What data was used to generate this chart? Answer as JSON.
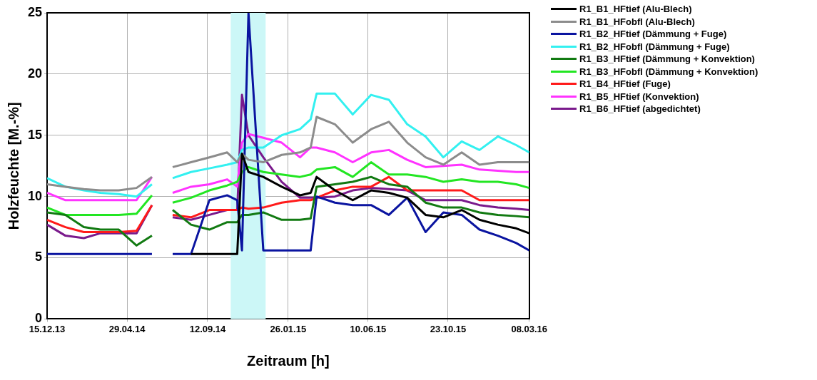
{
  "chart_data": {
    "type": "line",
    "xlabel": "Zeitraum [h]",
    "ylabel": "Holzfeuchte [M.-%]",
    "x": [
      "2013-12-15",
      "2014-01-15",
      "2014-02-15",
      "2014-03-15",
      "2014-04-15",
      "2014-05-15",
      "2014-06-10",
      "2014-06-20",
      "2014-07-15",
      "2014-08-15",
      "2014-09-15",
      "2014-10-15",
      "2014-11-01",
      "2014-11-09",
      "2014-11-20",
      "2014-12-15",
      "2015-01-15",
      "2015-02-15",
      "2015-03-05",
      "2015-03-15",
      "2015-04-15",
      "2015-05-15",
      "2015-06-15",
      "2015-07-15",
      "2015-08-15",
      "2015-09-15",
      "2015-10-15",
      "2015-11-15",
      "2015-12-15",
      "2016-01-15",
      "2016-02-15",
      "2016-03-08"
    ],
    "series": [
      {
        "name": "R1_B1_HFtief (Alu-Blech)",
        "color": "#000000",
        "values": [
          null,
          null,
          null,
          null,
          null,
          null,
          null,
          null,
          null,
          5.3,
          5.3,
          5.3,
          5.3,
          13.5,
          12.0,
          11.6,
          10.8,
          10.1,
          10.3,
          11.6,
          10.5,
          9.7,
          10.5,
          10.3,
          9.9,
          8.5,
          8.3,
          8.9,
          8.1,
          7.7,
          7.4,
          7.0
        ]
      },
      {
        "name": "R1_B1_HFobfl (Alu-Blech)",
        "color": "#8c8c8c",
        "values": [
          11.0,
          10.8,
          10.6,
          10.5,
          10.5,
          10.7,
          11.6,
          null,
          12.4,
          12.8,
          13.2,
          13.6,
          12.8,
          13.5,
          13.0,
          12.8,
          13.4,
          13.6,
          14.0,
          16.5,
          15.9,
          14.4,
          15.5,
          16.1,
          14.4,
          13.2,
          12.6,
          13.6,
          12.6,
          12.8,
          12.8,
          12.8
        ]
      },
      {
        "name": "R1_B2_HFtief (Dämmung + Fuge)",
        "color": "#0a14a0",
        "values": [
          5.3,
          5.3,
          5.3,
          5.3,
          5.3,
          5.3,
          5.3,
          null,
          5.3,
          5.3,
          9.7,
          10.1,
          9.7,
          5.6,
          25,
          5.6,
          5.6,
          5.6,
          5.6,
          10.0,
          9.5,
          9.3,
          9.3,
          8.5,
          9.9,
          7.1,
          8.7,
          8.5,
          7.3,
          6.8,
          6.2,
          5.6
        ]
      },
      {
        "name": "R1_B2_HFobfl (Dämmung + Fuge)",
        "color": "#33f0f0",
        "values": [
          11.5,
          10.8,
          10.5,
          10.3,
          10.2,
          10.0,
          11.0,
          null,
          11.5,
          12.0,
          12.3,
          12.6,
          12.8,
          13.8,
          14.0,
          14.0,
          15.0,
          15.5,
          16.3,
          18.4,
          18.4,
          16.7,
          18.3,
          17.9,
          15.9,
          14.9,
          13.2,
          14.5,
          13.8,
          14.9,
          14.2,
          13.6
        ]
      },
      {
        "name": "R1_B3_HFtief (Dämmung + Konvektion)",
        "color": "#127a12",
        "values": [
          8.7,
          8.5,
          7.5,
          7.3,
          7.3,
          6.0,
          6.8,
          null,
          8.9,
          7.7,
          7.3,
          7.9,
          7.9,
          8.5,
          8.5,
          8.7,
          8.1,
          8.1,
          8.2,
          10.8,
          11.0,
          11.2,
          11.6,
          11.0,
          10.8,
          9.5,
          9.1,
          9.1,
          8.7,
          8.5,
          8.4,
          8.3
        ]
      },
      {
        "name": "R1_B3_HFobfl (Dämmung + Konvektion)",
        "color": "#22e622",
        "values": [
          9.1,
          8.5,
          8.5,
          8.5,
          8.5,
          8.6,
          10.1,
          null,
          9.5,
          9.9,
          10.5,
          10.9,
          11.2,
          12.0,
          12.4,
          12.0,
          11.8,
          11.6,
          11.8,
          12.2,
          12.4,
          11.6,
          12.8,
          11.8,
          11.8,
          11.6,
          11.2,
          11.4,
          11.2,
          11.2,
          11.0,
          10.7
        ]
      },
      {
        "name": "R1_B4_HFtief (Fuge)",
        "color": "#ff1a1a",
        "values": [
          8.1,
          7.5,
          7.1,
          7.1,
          7.1,
          7.2,
          9.3,
          null,
          8.5,
          8.3,
          8.9,
          8.9,
          8.9,
          9.1,
          9.0,
          9.1,
          9.5,
          9.7,
          9.7,
          9.9,
          10.5,
          10.8,
          10.8,
          11.6,
          10.5,
          10.5,
          10.5,
          10.5,
          9.7,
          9.7,
          9.7,
          9.7
        ]
      },
      {
        "name": "R1_B5_HFtief (Konvektion)",
        "color": "#ff33ff",
        "values": [
          10.3,
          9.7,
          9.7,
          9.7,
          9.7,
          9.7,
          11.6,
          null,
          10.3,
          10.8,
          11.0,
          11.4,
          10.8,
          14.4,
          15.1,
          14.8,
          14.4,
          13.2,
          14.0,
          14.0,
          13.6,
          12.8,
          13.6,
          13.8,
          13.0,
          12.4,
          12.5,
          12.6,
          12.2,
          12.1,
          12.0,
          12.0
        ]
      },
      {
        "name": "R1_B6_HFtief (abgedichtet)",
        "color": "#7a1a8c",
        "values": [
          7.7,
          6.8,
          6.6,
          7.0,
          7.0,
          7.0,
          9.3,
          null,
          8.3,
          8.1,
          8.5,
          8.9,
          8.9,
          18.3,
          15.0,
          13.2,
          11.2,
          9.9,
          9.9,
          9.9,
          10.0,
          10.5,
          10.7,
          10.6,
          10.5,
          9.7,
          9.7,
          9.7,
          9.3,
          9.1,
          9.0,
          8.9
        ]
      }
    ],
    "xlim": [
      "2013-12-15",
      "2016-03-08"
    ],
    "xticks": [
      {
        "value": "2013-12-15",
        "label": "15.12.13"
      },
      {
        "value": "2014-04-29",
        "label": "29.04.14"
      },
      {
        "value": "2014-09-12",
        "label": "12.09.14"
      },
      {
        "value": "2015-01-26",
        "label": "26.01.15"
      },
      {
        "value": "2015-06-10",
        "label": "10.06.15"
      },
      {
        "value": "2015-10-23",
        "label": "23.10.15"
      },
      {
        "value": "2016-03-08",
        "label": "08.03.16"
      }
    ],
    "ylim": [
      0,
      25
    ],
    "yticks": [
      0,
      5,
      10,
      15,
      20,
      25
    ],
    "bands": [
      {
        "axis": "x",
        "from": "2014-10-21",
        "to": "2014-12-19",
        "color": "#ccf7f7"
      }
    ],
    "grid": true,
    "legend": "right",
    "marker": "none",
    "line_style": "solid"
  }
}
